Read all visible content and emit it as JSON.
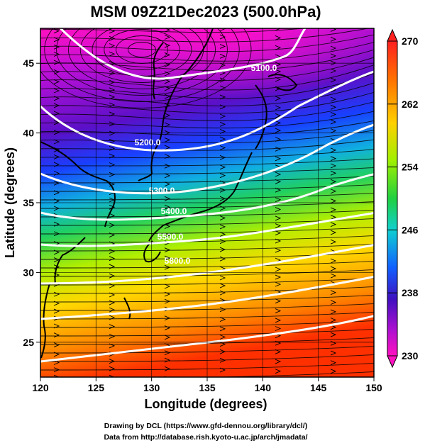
{
  "title": "MSM 09Z21Dec2023 (500.0hPa)",
  "x_axis": {
    "label": "Longitude (degrees)",
    "ticks": [
      "120",
      "125",
      "130",
      "135",
      "140",
      "145",
      "150"
    ]
  },
  "y_axis": {
    "label": "Latitude  (degrees)",
    "ticks": [
      "25",
      "30",
      "35",
      "40",
      "45"
    ]
  },
  "colorbar": {
    "ticks": [
      "270",
      "262",
      "254",
      "246",
      "238",
      "230"
    ],
    "colors": [
      "#ff2020",
      "#ff6a00",
      "#ffb000",
      "#ffe600",
      "#b8f000",
      "#40d020",
      "#10d0a0",
      "#10a8ff",
      "#1840ff",
      "#6010c8",
      "#b010d8",
      "#ff10c0"
    ]
  },
  "contour_labels": [
    "5100.0",
    "5200.0",
    "5300.0",
    "5400.0",
    "5500.0",
    "5800.0"
  ],
  "footer": {
    "line1": "Drawing by DCL (https://www.gfd-dennou.org/library/dcl/)",
    "line2": "Data from http://database.rish.kyoto-u.ac.jp/arch/jmadata/"
  },
  "chart_data": {
    "type": "heatmap",
    "title": "MSM 09Z21Dec2023 (500.0hPa)",
    "xlabel": "Longitude (degrees)",
    "ylabel": "Latitude  (degrees)",
    "xlim": [
      120,
      150
    ],
    "ylim": [
      22.5,
      47.5
    ],
    "colorbar_range": [
      230,
      270
    ],
    "colorbar_ticks": [
      270,
      262,
      254,
      246,
      238,
      230
    ],
    "contour_levels": [
      5100,
      5200,
      5300,
      5400,
      5500,
      5600,
      5700,
      5800
    ],
    "grid": true
  }
}
